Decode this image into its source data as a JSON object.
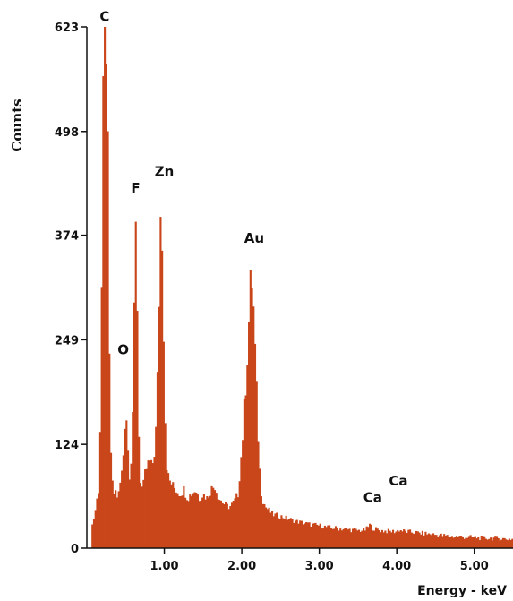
{
  "chart_data": {
    "type": "bar",
    "title": "",
    "xlabel": "Energy - keV",
    "ylabel": "Counts",
    "xlim": [
      0.0,
      5.5
    ],
    "ylim": [
      0,
      623
    ],
    "xticks": [
      {
        "value": 1.0,
        "label": "1.00"
      },
      {
        "value": 2.0,
        "label": "2.00"
      },
      {
        "value": 3.0,
        "label": "3.00"
      },
      {
        "value": 4.0,
        "label": "4.00"
      },
      {
        "value": 5.0,
        "label": "5.00"
      }
    ],
    "yticks": [
      {
        "value": 0,
        "label": "0"
      },
      {
        "value": 124,
        "label": "124"
      },
      {
        "value": 249,
        "label": "249"
      },
      {
        "value": 374,
        "label": "374"
      },
      {
        "value": 498,
        "label": "498"
      },
      {
        "value": 623,
        "label": "623"
      }
    ],
    "color": "#c9461a",
    "series": [
      {
        "x": [
          0.05,
          0.1,
          0.15,
          0.18,
          0.2,
          0.22,
          0.24,
          0.26,
          0.28,
          0.3,
          0.32,
          0.34,
          0.36,
          0.38,
          0.4,
          0.42,
          0.44,
          0.46,
          0.48,
          0.5,
          0.52,
          0.54,
          0.56,
          0.58,
          0.6,
          0.62,
          0.64,
          0.66,
          0.68,
          0.7,
          0.72,
          0.74,
          0.76,
          0.78,
          0.8,
          0.82,
          0.84,
          0.86,
          0.88,
          0.9,
          0.92,
          0.94,
          0.96,
          0.98,
          1.0,
          1.02,
          1.04,
          1.06,
          1.08,
          1.1,
          1.15,
          1.2,
          1.25,
          1.3,
          1.35,
          1.4,
          1.45,
          1.5,
          1.55,
          1.6,
          1.65,
          1.7,
          1.75,
          1.8,
          1.85,
          1.9,
          1.95,
          2.0,
          2.04,
          2.08,
          2.1,
          2.12,
          2.14,
          2.16,
          2.18,
          2.2,
          2.22,
          2.24,
          2.26,
          2.3,
          2.35,
          2.4,
          2.5,
          2.6,
          2.7,
          2.8,
          2.9,
          3.0,
          3.1,
          3.2,
          3.3,
          3.4,
          3.5,
          3.6,
          3.65,
          3.69,
          3.75,
          3.8,
          3.9,
          4.0,
          4.02,
          4.1,
          4.2,
          4.3,
          4.4,
          4.5,
          4.6,
          4.7,
          4.8,
          4.9,
          5.0,
          5.1,
          5.2,
          5.3,
          5.4,
          5.5
        ],
        "y": [
          20,
          40,
          70,
          180,
          440,
          600,
          612,
          615,
          300,
          140,
          90,
          60,
          70,
          65,
          60,
          70,
          85,
          95,
          130,
          175,
          140,
          95,
          85,
          130,
          200,
          340,
          410,
          180,
          90,
          75,
          70,
          80,
          95,
          95,
          105,
          100,
          95,
          110,
          120,
          160,
          240,
          360,
          430,
          330,
          200,
          110,
          90,
          80,
          80,
          75,
          70,
          65,
          70,
          60,
          65,
          70,
          60,
          65,
          60,
          70,
          75,
          60,
          55,
          50,
          50,
          55,
          65,
          120,
          180,
          250,
          290,
          330,
          310,
          260,
          210,
          160,
          110,
          75,
          60,
          50,
          45,
          40,
          38,
          35,
          32,
          30,
          28,
          27,
          25,
          24,
          23,
          22,
          21,
          22,
          28,
          24,
          22,
          21,
          20,
          20,
          22,
          20,
          19,
          18,
          17,
          16,
          15,
          14,
          14,
          13,
          13,
          12,
          12,
          12,
          11,
          11
        ]
      }
    ],
    "annotations": [
      {
        "text": "C",
        "x": 0.23,
        "y": 630
      },
      {
        "text": "F",
        "x": 0.63,
        "y": 425
      },
      {
        "text": "Zn",
        "x": 1.0,
        "y": 445
      },
      {
        "text": "O",
        "x": 0.47,
        "y": 232
      },
      {
        "text": "Au",
        "x": 2.16,
        "y": 365
      },
      {
        "text": "Ca",
        "x": 3.69,
        "y": 55
      },
      {
        "text": "Ca",
        "x": 4.02,
        "y": 75
      }
    ]
  }
}
